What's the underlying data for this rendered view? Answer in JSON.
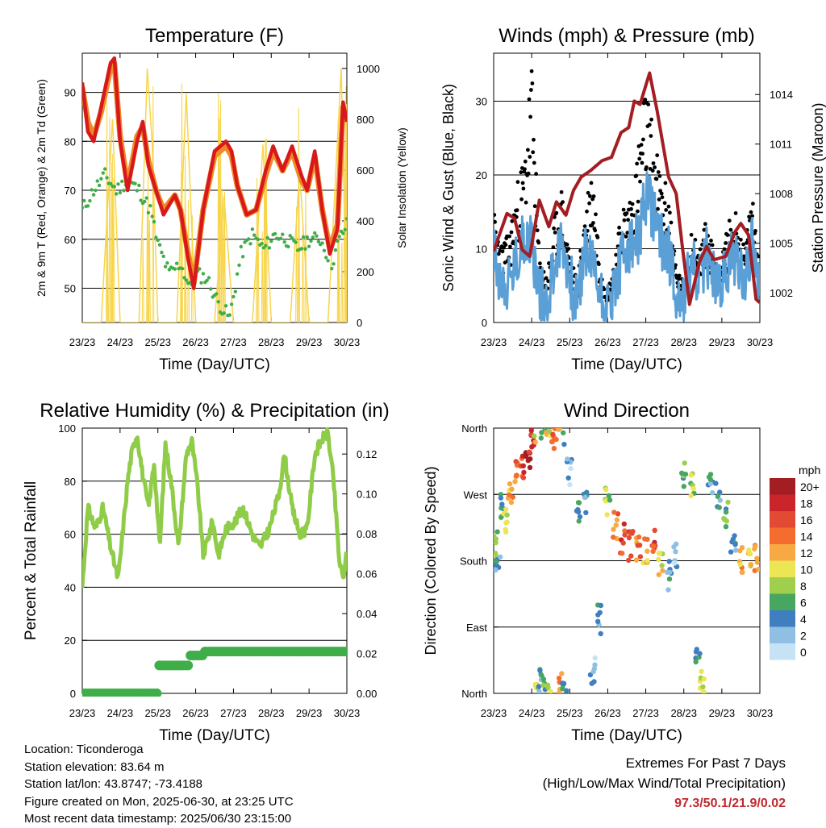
{
  "chart_data": [
    {
      "type": "line",
      "title": "Temperature (F)",
      "xlabel": "Time (Day/UTC)",
      "ylabel": "2m & 9m T (Red, Orange) & 2m Td (Green)",
      "ylabel_right": "Solar Insolation (Yellow)",
      "x_ticks": [
        "23/23",
        "24/23",
        "25/23",
        "26/23",
        "27/23",
        "28/23",
        "29/23",
        "30/23"
      ],
      "y_ticks": [
        50,
        60,
        70,
        80,
        90
      ],
      "y_right_ticks": [
        0,
        200,
        400,
        600,
        800,
        1000
      ],
      "ylim": [
        43,
        98
      ],
      "ylim_right": [
        0,
        1060
      ],
      "grid": true,
      "colors": {
        "t2m": "#d7191c",
        "t9m": "#f08a24",
        "td": "#3fae49",
        "solar": "#f7d54a"
      },
      "series": [
        {
          "name": "2m T",
          "x": [
            0,
            0.15,
            0.3,
            0.5,
            0.75,
            0.85,
            1,
            1.2,
            1.45,
            1.6,
            1.75,
            1.95,
            2.15,
            2.45,
            2.6,
            2.8,
            2.95,
            3.2,
            3.5,
            3.8,
            3.95,
            4.1,
            4.35,
            4.6,
            4.85,
            5.05,
            5.3,
            5.55,
            5.8,
            5.95,
            6.15,
            6.35,
            6.55,
            6.75,
            6.9,
            7
          ],
          "y": [
            92,
            82,
            80,
            87,
            96,
            97,
            80,
            70,
            80,
            84,
            75,
            70,
            65,
            69,
            66,
            56,
            50,
            66,
            78,
            80,
            78,
            71,
            65,
            66,
            74,
            79,
            74,
            79,
            73,
            70,
            78,
            66,
            57,
            62,
            88,
            84
          ]
        },
        {
          "name": "9m T",
          "x": [
            0,
            0.15,
            0.3,
            0.5,
            0.75,
            0.85,
            1,
            1.2,
            1.45,
            1.6,
            1.75,
            1.95,
            2.15,
            2.45,
            2.6,
            2.8,
            2.95,
            3.2,
            3.5,
            3.8,
            3.95,
            4.1,
            4.35,
            4.6,
            4.85,
            5.05,
            5.3,
            5.55,
            5.8,
            5.95,
            6.15,
            6.35,
            6.55,
            6.75,
            6.9,
            7
          ],
          "y": [
            91,
            84,
            81,
            86,
            95,
            96,
            81,
            71,
            81,
            83,
            76,
            70,
            66,
            69,
            66,
            57,
            51,
            66,
            77,
            79,
            77,
            71,
            65,
            66,
            73,
            78,
            74,
            78,
            72,
            70,
            77,
            66,
            58,
            63,
            87,
            84
          ]
        },
        {
          "name": "2m Td",
          "x": [
            0,
            0.3,
            0.6,
            0.9,
            1.2,
            1.5,
            1.8,
            2.0,
            2.3,
            2.6,
            2.85,
            3.0,
            3.3,
            3.6,
            3.9,
            4.2,
            4.5,
            4.8,
            5.1,
            5.4,
            5.7,
            6.0,
            6.3,
            6.6,
            6.8,
            7
          ],
          "y": [
            66,
            70,
            73,
            70,
            72,
            70,
            66,
            59,
            53,
            55,
            50,
            53,
            52,
            47,
            44,
            57,
            61,
            58,
            61,
            60,
            58,
            60,
            60,
            55,
            60,
            63
          ]
        },
        {
          "name": "Solar Insolation",
          "x": [
            0,
            0.5,
            0.8,
            1.0,
            1.5,
            1.72,
            1.85,
            2.0,
            2.5,
            2.75,
            3.0,
            3.5,
            3.75,
            4.0,
            4.5,
            4.78,
            5.0,
            5.5,
            5.75,
            6.0,
            6.5,
            6.85,
            7
          ],
          "y": [
            0,
            0,
            800,
            0,
            0,
            1000,
            700,
            0,
            0,
            900,
            0,
            0,
            500,
            0,
            0,
            700,
            0,
            0,
            600,
            0,
            0,
            1000,
            0
          ]
        }
      ]
    },
    {
      "type": "scatter",
      "title": "Winds (mph) & Pressure (mb)",
      "xlabel": "Time (Day/UTC)",
      "ylabel": "Sonic Wind & Gust (Blue, Black)",
      "ylabel_right": "Station Pressure (Maroon)",
      "x_ticks": [
        "23/23",
        "24/23",
        "25/23",
        "26/23",
        "27/23",
        "28/23",
        "29/23",
        "30/23"
      ],
      "y_ticks": [
        0,
        10,
        20,
        30
      ],
      "y_right_ticks": [
        1002,
        1005,
        1008,
        1011,
        1014
      ],
      "ylim": [
        0,
        36.5
      ],
      "ylim_right": [
        1000.2,
        1016.5
      ],
      "grid": true,
      "colors": {
        "wind": "#5a9fd6",
        "gust": "#000000",
        "pressure": "#a31d22"
      },
      "series": [
        {
          "name": "Sonic Wind",
          "x": [
            0,
            0.2,
            0.4,
            0.6,
            0.8,
            1.0,
            1.2,
            1.4,
            1.6,
            1.8,
            2.0,
            2.2,
            2.4,
            2.6,
            2.8,
            3.0,
            3.2,
            3.4,
            3.6,
            3.8,
            4.0,
            4.2,
            4.4,
            4.6,
            4.8,
            5.0,
            5.2,
            5.4,
            5.6,
            5.8,
            6.0,
            6.2,
            6.4,
            6.6,
            6.8,
            7
          ],
          "y": [
            9,
            6,
            5,
            8,
            12,
            11,
            4,
            3,
            8,
            11,
            6,
            2,
            10,
            8,
            4,
            2,
            5,
            9,
            10,
            11,
            17,
            15,
            11,
            10,
            4,
            3,
            8,
            5,
            9,
            6,
            5,
            8,
            9,
            6,
            11,
            4
          ]
        },
        {
          "name": "Gust",
          "x": [
            0,
            0.2,
            0.4,
            0.6,
            0.8,
            1.0,
            1.2,
            1.4,
            1.6,
            1.8,
            2.0,
            2.2,
            2.4,
            2.6,
            2.8,
            3.0,
            3.2,
            3.4,
            3.6,
            3.8,
            4.0,
            4.2,
            4.4,
            4.6,
            4.8,
            5.0,
            5.2,
            5.4,
            5.6,
            5.8,
            6.0,
            6.2,
            6.4,
            6.6,
            6.8,
            7
          ],
          "y": [
            14,
            10,
            11,
            17,
            21,
            33,
            8,
            6,
            13,
            17,
            9,
            5,
            15,
            20,
            8,
            4,
            9,
            15,
            16,
            22,
            30,
            24,
            18,
            17,
            7,
            5,
            12,
            9,
            13,
            9,
            8,
            13,
            14,
            9,
            17,
            7
          ]
        },
        {
          "name": "Station Pressure",
          "x": [
            0,
            0.15,
            0.35,
            0.55,
            0.75,
            0.95,
            1.2,
            1.45,
            1.65,
            1.9,
            2.1,
            2.3,
            2.55,
            2.85,
            3.1,
            3.35,
            3.55,
            3.7,
            3.85,
            4.1,
            4.3,
            4.45,
            4.6,
            4.8,
            4.95,
            5.15,
            5.4,
            5.6,
            5.8,
            6.1,
            6.35,
            6.5,
            6.7,
            6.9,
            7
          ],
          "y": [
            1004.5,
            1005.5,
            1006.8,
            1006.5,
            1004.6,
            1004.2,
            1007.6,
            1006.0,
            1007.5,
            1006.7,
            1008.2,
            1009.0,
            1009.4,
            1010.0,
            1010.2,
            1011.7,
            1012.0,
            1013.6,
            1013.4,
            1015.3,
            1013.0,
            1011.0,
            1009.0,
            1008.0,
            1005.0,
            1001.3,
            1003.8,
            1004.8,
            1004.0,
            1004.2,
            1005.7,
            1006.2,
            1005.5,
            1001.6,
            1001.4
          ]
        }
      ]
    },
    {
      "type": "line",
      "title": "Relative Humidity (%) & Precipitation (in)",
      "xlabel": "Time (Day/UTC)",
      "ylabel": "Percent & Total Rainfall",
      "x_ticks": [
        "23/23",
        "24/23",
        "25/23",
        "26/23",
        "27/23",
        "28/23",
        "29/23",
        "30/23"
      ],
      "y_ticks": [
        0,
        20,
        40,
        60,
        80,
        100
      ],
      "y_right_ticks": [
        "0.00",
        "0.02",
        "0.04",
        "0.06",
        "0.08",
        "0.10",
        "0.12"
      ],
      "ylim": [
        0,
        100
      ],
      "ylim_right": [
        0,
        0.133
      ],
      "grid": true,
      "colors": {
        "rh": "#8fcc47",
        "precip": "#3fae49"
      },
      "series": [
        {
          "name": "Relative Humidity",
          "x": [
            0,
            0.15,
            0.35,
            0.55,
            0.75,
            0.95,
            1.2,
            1.3,
            1.45,
            1.6,
            1.75,
            1.9,
            2.05,
            2.2,
            2.35,
            2.55,
            2.75,
            2.9,
            3.05,
            3.2,
            3.45,
            3.6,
            3.8,
            4.05,
            4.25,
            4.5,
            4.7,
            4.95,
            5.2,
            5.35,
            5.55,
            5.75,
            5.95,
            6.15,
            6.35,
            6.5,
            6.65,
            6.8,
            6.9,
            7
          ],
          "y": [
            40,
            70,
            62,
            70,
            55,
            43,
            80,
            90,
            98,
            82,
            70,
            87,
            55,
            94,
            80,
            55,
            90,
            95,
            78,
            52,
            65,
            52,
            62,
            65,
            70,
            60,
            55,
            62,
            75,
            90,
            70,
            60,
            62,
            90,
            96,
            98,
            80,
            50,
            43,
            53
          ]
        },
        {
          "name": "Precipitation",
          "x": [
            0,
            1.99,
            2.0,
            2.8,
            2.85,
            3.1,
            3.2,
            7
          ],
          "y": [
            0,
            0,
            0.014,
            0.014,
            0.019,
            0.019,
            0.021,
            0.021
          ]
        }
      ]
    },
    {
      "type": "scatter",
      "title": "Wind Direction",
      "xlabel": "Time (Day/UTC)",
      "ylabel": "Direction (Colored By Speed)",
      "x_ticks": [
        "23/23",
        "24/23",
        "25/23",
        "26/23",
        "27/23",
        "28/23",
        "29/23",
        "30/23"
      ],
      "y_ticks": [
        "North",
        "East",
        "South",
        "West",
        "North"
      ],
      "ylim": [
        0,
        360
      ],
      "grid": true,
      "legend_title": "mph",
      "legend_labels": [
        "20+",
        "18",
        "16",
        "14",
        "12",
        "10",
        "8",
        "6",
        "4",
        "2",
        "0"
      ],
      "legend_colors": [
        "#a31d22",
        "#c9252b",
        "#e34a33",
        "#f46d2f",
        "#f7a944",
        "#ece554",
        "#9fcf4c",
        "#47a660",
        "#3f7fc0",
        "#8fbfe3",
        "#c6e2f5"
      ],
      "points": [
        [
          0.05,
          200,
          8
        ],
        [
          0.12,
          170,
          4
        ],
        [
          0.2,
          250,
          6
        ],
        [
          0.3,
          230,
          10
        ],
        [
          0.45,
          270,
          12
        ],
        [
          0.6,
          300,
          14
        ],
        [
          0.75,
          310,
          16
        ],
        [
          0.9,
          320,
          20
        ],
        [
          1.0,
          340,
          18
        ],
        [
          1.1,
          355,
          10
        ],
        [
          1.2,
          15,
          4
        ],
        [
          1.3,
          0,
          6
        ],
        [
          1.45,
          5,
          10
        ],
        [
          1.6,
          350,
          14
        ],
        [
          1.75,
          10,
          12
        ],
        [
          1.85,
          355,
          4
        ],
        [
          2.0,
          300,
          2
        ],
        [
          2.2,
          245,
          4
        ],
        [
          2.4,
          260,
          4
        ],
        [
          2.6,
          30,
          2
        ],
        [
          2.8,
          100,
          4
        ],
        [
          3.0,
          260,
          8
        ],
        [
          3.2,
          230,
          14
        ],
        [
          3.4,
          210,
          16
        ],
        [
          3.6,
          200,
          18
        ],
        [
          3.8,
          200,
          14
        ],
        [
          4.0,
          190,
          12
        ],
        [
          4.2,
          210,
          16
        ],
        [
          4.4,
          175,
          10
        ],
        [
          4.6,
          160,
          4
        ],
        [
          4.8,
          190,
          2
        ],
        [
          5.0,
          300,
          6
        ],
        [
          5.2,
          280,
          8
        ],
        [
          5.35,
          40,
          6
        ],
        [
          5.5,
          20,
          10
        ],
        [
          5.7,
          290,
          4
        ],
        [
          5.9,
          270,
          4
        ],
        [
          6.1,
          240,
          6
        ],
        [
          6.3,
          200,
          4
        ],
        [
          6.5,
          180,
          12
        ],
        [
          6.7,
          190,
          10
        ],
        [
          6.9,
          185,
          12
        ]
      ]
    }
  ],
  "info": {
    "location": "Location: Ticonderoga",
    "elevation": "Station elevation: 83.64 m",
    "latlon": "Station lat/lon: 43.8747; -73.4188",
    "created": "Figure created on Mon, 2025-06-30, at 23:25 UTC",
    "timestamp": "Most recent data timestamp: 2025/06/30 23:15:00"
  },
  "extremes": {
    "title": "Extremes For Past 7 Days",
    "subtitle": "(High/Low/Max Wind/Total Precipitation)",
    "values": "97.3/50.1/21.9/0.02"
  }
}
